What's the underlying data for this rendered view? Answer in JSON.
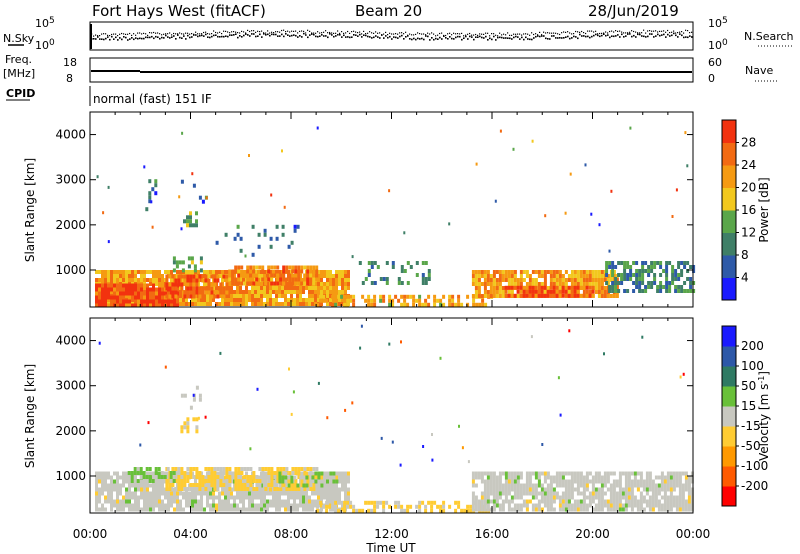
{
  "header": {
    "station": "Fort Hays West (fitACF)",
    "beam": "Beam 20",
    "date": "28/Jun/2019"
  },
  "side_labels": {
    "nsky": "N.Sky",
    "nsearch": "N.Search",
    "freq_top": "Freq.",
    "freq_unit": "[MHz]",
    "nave": "Nave",
    "cpid": "CPID"
  },
  "mode_text": "normal (fast) 151 IF",
  "noise_ticks": {
    "left_top": "10^5",
    "left_bottom": "10^0",
    "right_top": "10^5",
    "right_bottom": "10^0"
  },
  "freq_ticks": {
    "left_top": "18",
    "left_bottom": "8",
    "right_top": "60",
    "right_bottom": "0"
  },
  "chart_data": [
    {
      "type": "heatmap",
      "panel": "power",
      "xlabel": "Time UT",
      "ylabel": "Slant Range [km]",
      "x_ticks": [
        "00:00",
        "04:00",
        "08:00",
        "12:00",
        "16:00",
        "20:00",
        "00:00"
      ],
      "y_ticks": [
        "1000",
        "2000",
        "3000",
        "4000"
      ],
      "xlim_hours": [
        0,
        24
      ],
      "ylim_km": [
        180,
        4500
      ],
      "colorbar": {
        "label": "Power [dB]",
        "ticks": [
          "4",
          "8",
          "12",
          "16",
          "20",
          "24",
          "28"
        ],
        "range": [
          0,
          32
        ],
        "colors": [
          "#1a1aff",
          "#2e5aa8",
          "#3f7f67",
          "#5aa64a",
          "#f2c81e",
          "#f59a12",
          "#f26a12",
          "#f2320f"
        ]
      },
      "regions": [
        {
          "t0": 0.2,
          "t1": 10.3,
          "r0": 250,
          "r1": 1000,
          "density": 0.9,
          "value": 22
        },
        {
          "t0": 0.2,
          "t1": 3.5,
          "r0": 250,
          "r1": 700,
          "density": 0.95,
          "value": 28
        },
        {
          "t0": 3.0,
          "t1": 5.5,
          "r0": 400,
          "r1": 900,
          "density": 0.8,
          "value": 26
        },
        {
          "t0": 5.5,
          "t1": 9.0,
          "r0": 700,
          "r1": 1100,
          "density": 0.75,
          "value": 24
        },
        {
          "t0": 3.3,
          "t1": 4.4,
          "r0": 1000,
          "r1": 1300,
          "density": 0.5,
          "value": 14
        },
        {
          "t0": 3.7,
          "t1": 4.2,
          "r0": 2000,
          "r1": 2300,
          "density": 0.5,
          "value": 12
        },
        {
          "t0": 3.5,
          "t1": 4.6,
          "r0": 2500,
          "r1": 3000,
          "density": 0.15,
          "value": 8
        },
        {
          "t0": 2.2,
          "t1": 3.2,
          "r0": 2300,
          "r1": 3100,
          "density": 0.08,
          "value": 8
        },
        {
          "t0": 5.0,
          "t1": 8.5,
          "r0": 1300,
          "r1": 2000,
          "density": 0.12,
          "value": 8
        },
        {
          "t0": 9.0,
          "t1": 16.0,
          "r0": 250,
          "r1": 450,
          "density": 0.55,
          "value": 20
        },
        {
          "t0": 10.7,
          "t1": 13.5,
          "r0": 700,
          "r1": 1200,
          "density": 0.2,
          "value": 10
        },
        {
          "t0": 15.2,
          "t1": 21.0,
          "r0": 400,
          "r1": 1000,
          "density": 0.85,
          "value": 22
        },
        {
          "t0": 16.5,
          "t1": 20.0,
          "r0": 400,
          "r1": 650,
          "density": 0.85,
          "value": 28
        },
        {
          "t0": 20.5,
          "t1": 24.0,
          "r0": 550,
          "r1": 1200,
          "density": 0.6,
          "value": 10
        }
      ]
    },
    {
      "type": "heatmap",
      "panel": "velocity",
      "xlabel": "Time UT",
      "ylabel": "Slant Range [km]",
      "x_ticks": [
        "00:00",
        "04:00",
        "08:00",
        "12:00",
        "16:00",
        "20:00",
        "00:00"
      ],
      "y_ticks": [
        "1000",
        "2000",
        "3000",
        "4000"
      ],
      "xlim_hours": [
        0,
        24
      ],
      "ylim_km": [
        180,
        4500
      ],
      "colorbar": {
        "label": "Velocity [m s^-1]",
        "ticks": [
          "200",
          "100",
          "50",
          "15",
          "-15",
          "-50",
          "-100",
          "-200"
        ],
        "range": [
          -250,
          250
        ],
        "colors": [
          "#ff0000",
          "#ff5a00",
          "#ff9900",
          "#ffcc33",
          "#c8c8c0",
          "#69c039",
          "#2f7a63",
          "#2d58a8",
          "#1a1aff"
        ]
      },
      "regions": [
        {
          "t0": 0.2,
          "t1": 10.3,
          "r0": 250,
          "r1": 1100,
          "density": 0.85,
          "value": 0
        },
        {
          "t0": 3.0,
          "t1": 9.0,
          "r0": 700,
          "r1": 1200,
          "density": 0.7,
          "value": -40
        },
        {
          "t0": 1.5,
          "t1": 3.5,
          "r0": 900,
          "r1": 1200,
          "density": 0.5,
          "value": 40
        },
        {
          "t0": 7.5,
          "t1": 9.8,
          "r0": 800,
          "r1": 1100,
          "density": 0.5,
          "value": 40
        },
        {
          "t0": 3.6,
          "t1": 4.3,
          "r0": 2000,
          "r1": 2300,
          "density": 0.5,
          "value": -40
        },
        {
          "t0": 3.5,
          "t1": 4.5,
          "r0": 2500,
          "r1": 3000,
          "density": 0.12,
          "value": 0
        },
        {
          "t0": 9.0,
          "t1": 16.0,
          "r0": 250,
          "r1": 450,
          "density": 0.55,
          "value": -40
        },
        {
          "t0": 15.2,
          "t1": 24.0,
          "r0": 300,
          "r1": 1100,
          "density": 0.8,
          "value": 0
        }
      ]
    }
  ]
}
